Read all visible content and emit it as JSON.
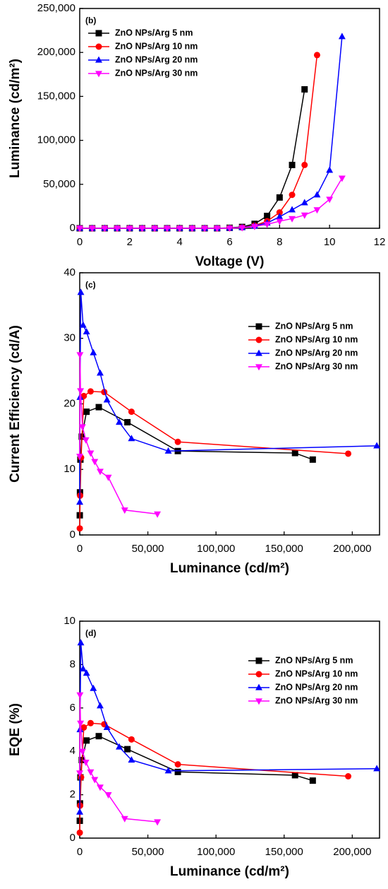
{
  "chart_data": [
    {
      "type": "line",
      "annotation": "(b)",
      "xlabel": "Voltage (V)",
      "ylabel": "Luminance (cd/m²)",
      "legend": "upper left",
      "xlim": [
        0,
        12
      ],
      "xticks": [
        0,
        2,
        4,
        6,
        8,
        10,
        12
      ],
      "ylim": [
        0,
        250000
      ],
      "yticks": [
        0,
        {
          "value": 50000,
          "label": "50,000"
        },
        {
          "value": 100000,
          "label": "100,000"
        },
        {
          "value": 150000,
          "label": "150,000"
        },
        {
          "value": 200000,
          "label": "200,000"
        },
        {
          "value": 250000,
          "label": "250,000"
        }
      ],
      "series": [
        {
          "name": "ZnO NPs/Arg 5 nm",
          "color": "#000000",
          "marker": "square",
          "x": [
            0,
            0.5,
            1,
            1.5,
            2,
            2.5,
            3,
            3.5,
            4,
            4.5,
            5,
            5.5,
            6,
            6.5,
            7,
            7.5,
            8,
            8.5,
            9
          ],
          "values": [
            0,
            0,
            0,
            0,
            0,
            0,
            0,
            0,
            0,
            0,
            0,
            0,
            500,
            1500,
            5000,
            14000,
            35000,
            72000,
            158000
          ]
        },
        {
          "name": "ZnO NPs/Arg 10 nm",
          "color": "#ff0000",
          "marker": "circle",
          "x": [
            0,
            0.5,
            1,
            1.5,
            2,
            2.5,
            3,
            3.5,
            4,
            4.5,
            5,
            5.5,
            6,
            6.5,
            7,
            7.5,
            8,
            8.5,
            9,
            9.5
          ],
          "values": [
            0,
            0,
            0,
            0,
            0,
            0,
            0,
            0,
            0,
            0,
            0,
            0,
            300,
            1000,
            3000,
            8000,
            18000,
            38000,
            72000,
            197000
          ]
        },
        {
          "name": "ZnO NPs/Arg 20 nm",
          "color": "#0000ff",
          "marker": "triangle-up",
          "x": [
            0,
            0.5,
            1,
            1.5,
            2,
            2.5,
            3,
            3.5,
            4,
            4.5,
            5,
            5.5,
            6,
            6.5,
            7,
            7.5,
            8,
            8.5,
            9,
            9.5,
            10,
            10.5
          ],
          "values": [
            0,
            0,
            0,
            0,
            0,
            0,
            0,
            0,
            0,
            0,
            0,
            0,
            200,
            800,
            2500,
            6000,
            13000,
            21000,
            29000,
            38000,
            66000,
            218000
          ]
        },
        {
          "name": "ZnO NPs/Arg 30 nm",
          "color": "#ff00ff",
          "marker": "triangle-down",
          "x": [
            0,
            0.5,
            1,
            1.5,
            2,
            2.5,
            3,
            3.5,
            4,
            4.5,
            5,
            5.5,
            6,
            6.5,
            7,
            7.5,
            8,
            8.5,
            9,
            9.5,
            10,
            10.5
          ],
          "values": [
            0,
            0,
            0,
            0,
            0,
            0,
            0,
            0,
            0,
            0,
            0,
            0,
            200,
            600,
            2000,
            4500,
            8000,
            11000,
            15000,
            21000,
            33000,
            57000
          ]
        }
      ]
    },
    {
      "type": "line",
      "annotation": "(c)",
      "xlabel": "Luminance (cd/m²)",
      "ylabel": "Current Efficiency (cd/A)",
      "legend": "upper right",
      "xlim": [
        0,
        220000
      ],
      "xticks": [
        0,
        {
          "value": 50000,
          "label": "50,000"
        },
        {
          "value": 100000,
          "label": "100,000"
        },
        {
          "value": 150000,
          "label": "150,000"
        },
        {
          "value": 200000,
          "label": "200,000"
        }
      ],
      "ylim": [
        0,
        40
      ],
      "yticks": [
        0,
        10,
        20,
        30,
        40
      ],
      "series": [
        {
          "name": "ZnO NPs/Arg 5 nm",
          "color": "#000000",
          "marker": "square",
          "x": [
            50,
            200,
            500,
            1500,
            5000,
            14000,
            35000,
            72000,
            158000,
            171000
          ],
          "values": [
            3,
            6.5,
            11.5,
            15,
            18.8,
            19.5,
            17.2,
            12.8,
            12.5,
            11.5
          ]
        },
        {
          "name": "ZnO NPs/Arg 10 nm",
          "color": "#ff0000",
          "marker": "circle",
          "x": [
            50,
            300,
            1000,
            3000,
            8000,
            18000,
            38000,
            72000,
            197000
          ],
          "values": [
            1,
            6,
            11.8,
            21.2,
            21.9,
            21.8,
            18.8,
            14.2,
            12.4
          ]
        },
        {
          "name": "ZnO NPs/Arg 20 nm",
          "color": "#0000ff",
          "marker": "triangle-up",
          "x": [
            30,
            200,
            800,
            2500,
            5000,
            10000,
            15000,
            20000,
            29000,
            38000,
            65000,
            218000
          ],
          "values": [
            5,
            21,
            37,
            32,
            31,
            27.8,
            24.7,
            20.6,
            17.2,
            14.7,
            12.8,
            13.6
          ]
        },
        {
          "name": "ZnO NPs/Arg 30 nm",
          "color": "#ff00ff",
          "marker": "triangle-down",
          "x": [
            20,
            200,
            600,
            2000,
            4500,
            8000,
            11000,
            15000,
            21000,
            33000,
            57000
          ],
          "values": [
            12,
            27.5,
            22,
            16.5,
            14.5,
            12.5,
            11.2,
            9.7,
            8.8,
            3.8,
            3.2
          ]
        }
      ]
    },
    {
      "type": "line",
      "annotation": "(d)",
      "xlabel": "Luminance (cd/m²)",
      "ylabel": "EQE (%)",
      "legend": "upper right",
      "xlim": [
        0,
        220000
      ],
      "xticks": [
        0,
        {
          "value": 50000,
          "label": "50,000"
        },
        {
          "value": 100000,
          "label": "100,000"
        },
        {
          "value": 150000,
          "label": "150,000"
        },
        {
          "value": 200000,
          "label": "200,000"
        }
      ],
      "ylim": [
        0,
        10
      ],
      "yticks": [
        0,
        2,
        4,
        6,
        8,
        10
      ],
      "series": [
        {
          "name": "ZnO NPs/Arg 5 nm",
          "color": "#000000",
          "marker": "square",
          "x": [
            50,
            200,
            500,
            1500,
            5000,
            14000,
            35000,
            72000,
            158000,
            171000
          ],
          "values": [
            0.8,
            1.6,
            2.8,
            3.6,
            4.5,
            4.7,
            4.1,
            3.05,
            2.9,
            2.65
          ]
        },
        {
          "name": "ZnO NPs/Arg 10 nm",
          "color": "#ff0000",
          "marker": "circle",
          "x": [
            50,
            300,
            1000,
            3000,
            8000,
            18000,
            38000,
            72000,
            197000
          ],
          "values": [
            0.25,
            1.5,
            2.8,
            5.1,
            5.3,
            5.25,
            4.55,
            3.4,
            2.85
          ]
        },
        {
          "name": "ZnO NPs/Arg 20 nm",
          "color": "#0000ff",
          "marker": "triangle-up",
          "x": [
            30,
            200,
            800,
            2500,
            5000,
            10000,
            15000,
            20000,
            29000,
            38000,
            65000,
            218000
          ],
          "values": [
            1.2,
            5,
            9,
            7.8,
            7.6,
            6.9,
            6.1,
            5.1,
            4.2,
            3.6,
            3.1,
            3.2
          ]
        },
        {
          "name": "ZnO NPs/Arg 30 nm",
          "color": "#ff00ff",
          "marker": "triangle-down",
          "x": [
            20,
            200,
            600,
            2000,
            4500,
            8000,
            11000,
            15000,
            21000,
            33000,
            57000
          ],
          "values": [
            3,
            6.6,
            5.3,
            4,
            3.5,
            3.05,
            2.7,
            2.35,
            2.0,
            0.9,
            0.75
          ]
        }
      ]
    }
  ]
}
